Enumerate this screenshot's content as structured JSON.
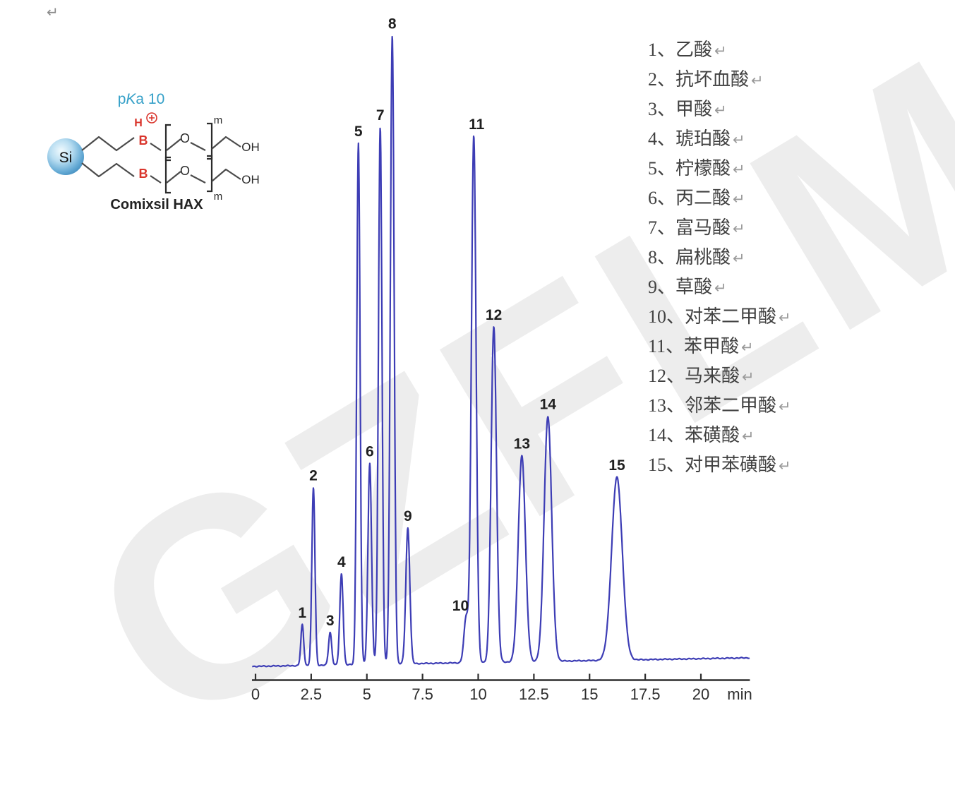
{
  "page": {
    "return_mark": "↵"
  },
  "watermark": {
    "text": "GZFLM",
    "color": "#ededed"
  },
  "structure": {
    "pka_p": "p",
    "pka_k": "K",
    "pka_rest": "a 10",
    "si_label": "Si",
    "h_label": "H",
    "b_label": "B",
    "o_label": "O",
    "oh_label": "OH",
    "m_label": "m",
    "caption": "Comixsil HAX",
    "accent_blue": "#35a0c8",
    "accent_red": "#d9342b"
  },
  "legend": {
    "return_mark": "↵",
    "items": [
      "1、乙酸",
      "2、抗坏血酸",
      "3、甲酸",
      "4、琥珀酸",
      "5、柠檬酸",
      "6、丙二酸",
      "7、富马酸",
      "8、扁桃酸",
      "9、草酸",
      "10、对苯二甲酸",
      "11、苯甲酸",
      "12、马来酸",
      "13、邻苯二甲酸",
      "14、苯磺酸",
      "15、对甲苯磺酸"
    ]
  },
  "chart_data": {
    "type": "line",
    "title": "",
    "xlabel": "min",
    "ylabel": "",
    "x_ticks": [
      "0",
      "2.5",
      "5",
      "7.5",
      "10",
      "12.5",
      "15",
      "17.5",
      "20"
    ],
    "x_tick_values": [
      0,
      2.5,
      5,
      7.5,
      10,
      12.5,
      15,
      17.5,
      20
    ],
    "x_range": [
      -0.15,
      22.2
    ],
    "y_range_intensity": [
      0,
      1000
    ],
    "grid": false,
    "legend_position": "right",
    "trace_color": "#3d3db5",
    "axis_color": "#2e2e2e",
    "peak_label_color": "#1f1f1f",
    "peaks": [
      {
        "label": "1",
        "compound": "乙酸",
        "rt": 2.1,
        "intensity": 65,
        "sigma": 0.065
      },
      {
        "label": "2",
        "compound": "抗坏血酸",
        "rt": 2.6,
        "intensity": 283,
        "sigma": 0.07
      },
      {
        "label": "3",
        "compound": "甲酸",
        "rt": 3.35,
        "intensity": 52,
        "sigma": 0.07
      },
      {
        "label": "4",
        "compound": "琥珀酸",
        "rt": 3.86,
        "intensity": 145,
        "sigma": 0.075
      },
      {
        "label": "5",
        "compound": "柠檬酸",
        "rt": 4.62,
        "intensity": 830,
        "sigma": 0.075
      },
      {
        "label": "6",
        "compound": "丙二酸",
        "rt": 5.13,
        "intensity": 320,
        "sigma": 0.08
      },
      {
        "label": "7",
        "compound": "富马酸",
        "rt": 5.6,
        "intensity": 855,
        "sigma": 0.08
      },
      {
        "label": "8",
        "compound": "扁桃酸",
        "rt": 6.14,
        "intensity": 1000,
        "sigma": 0.085
      },
      {
        "label": "9",
        "compound": "草酸",
        "rt": 6.84,
        "intensity": 216,
        "sigma": 0.09
      },
      {
        "label": "10",
        "compound": "对苯二甲酸",
        "rt": 9.46,
        "intensity": 72,
        "sigma": 0.1,
        "label_dx": -8
      },
      {
        "label": "11",
        "compound": "苯甲酸",
        "rt": 9.8,
        "intensity": 838,
        "sigma": 0.105,
        "label_dx": 4
      },
      {
        "label": "12",
        "compound": "马来酸",
        "rt": 10.7,
        "intensity": 534,
        "sigma": 0.12
      },
      {
        "label": "13",
        "compound": "邻苯二甲酸",
        "rt": 11.96,
        "intensity": 328,
        "sigma": 0.16
      },
      {
        "label": "14",
        "compound": "苯磺酸",
        "rt": 13.13,
        "intensity": 390,
        "sigma": 0.17
      },
      {
        "label": "15",
        "compound": "对甲苯磺酸",
        "rt": 16.23,
        "intensity": 291,
        "sigma": 0.24
      }
    ]
  }
}
